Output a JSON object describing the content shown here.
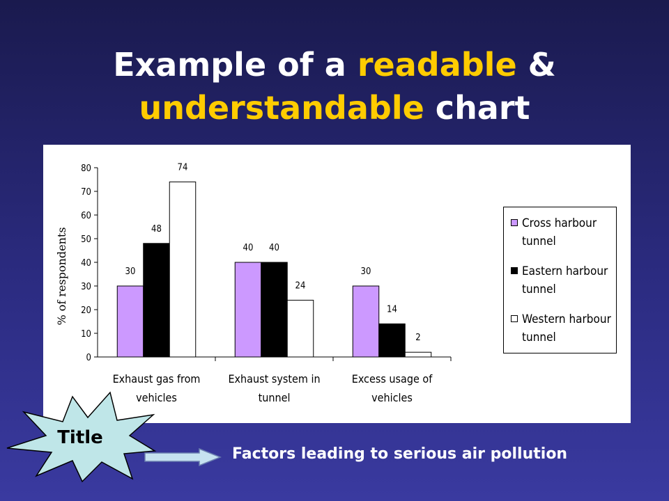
{
  "slide": {
    "title_parts": [
      {
        "text": "Example of a ",
        "highlight": false
      },
      {
        "text": "readable",
        "highlight": true
      },
      {
        "text": " &",
        "highlight": false
      },
      {
        "text": "understandable",
        "highlight": true
      },
      {
        "text": " chart",
        "highlight": false
      }
    ],
    "badge_label": "Title",
    "caption": "Factors leading to serious air pollution"
  },
  "colors": {
    "title": "#ffffff",
    "highlight": "#ffcc00",
    "background": "#2b2b80",
    "badge": "#bfe6e8",
    "arrow": "#c6e2f0"
  },
  "chart_data": {
    "type": "bar",
    "ylabel": "% of respondents",
    "xlabel": "",
    "ylim": [
      0,
      80
    ],
    "yticks": [
      0,
      10,
      20,
      30,
      40,
      50,
      60,
      70,
      80
    ],
    "categories": [
      [
        "Exhaust gas from",
        "vehicles"
      ],
      [
        "Exhaust system in",
        "tunnel"
      ],
      [
        "Excess usage of",
        "vehicles"
      ]
    ],
    "series": [
      {
        "name": [
          "Cross harbour",
          "tunnel"
        ],
        "color": "#cc99ff",
        "values": [
          30,
          40,
          30
        ]
      },
      {
        "name": [
          "Eastern harbour",
          "tunnel"
        ],
        "color": "#000000",
        "values": [
          48,
          40,
          14
        ]
      },
      {
        "name": [
          "Western harbour",
          "tunnel"
        ],
        "color": "#ffffff",
        "values": [
          74,
          24,
          2
        ]
      }
    ],
    "data_labels": true,
    "grid": false,
    "legend_position": "right"
  }
}
